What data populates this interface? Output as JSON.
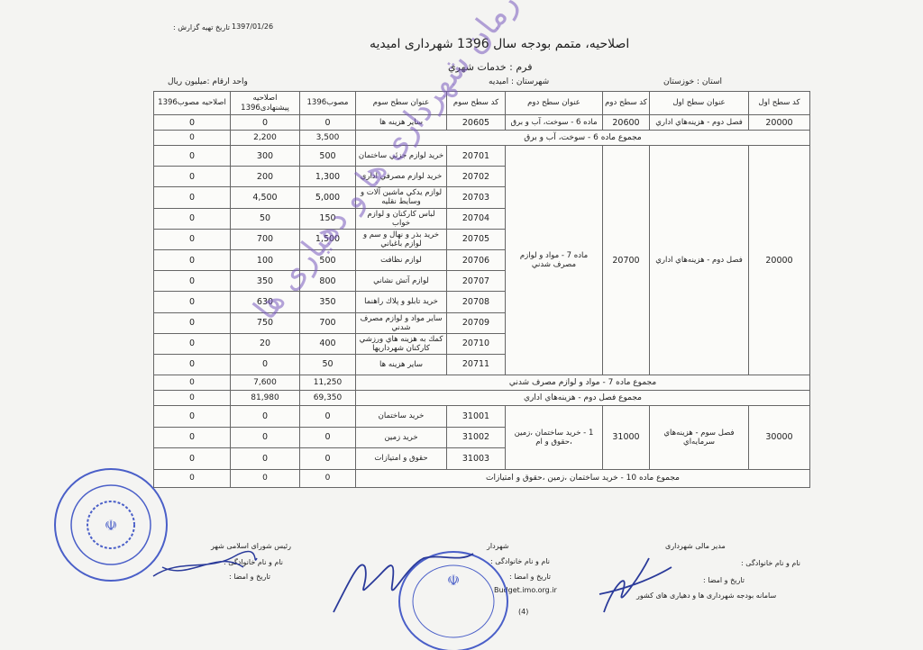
{
  "report_date_label": "تاریخ تهیه گزارش :",
  "report_date": "1397/01/26",
  "title": "اصلاحیه، متمم بودجه سال 1396 شهرداری امیدیه",
  "form": "فرم : خدمات شهري",
  "province": "استان : خوزستان",
  "county": "شهرستان : اميديه",
  "unit": "واحد ارقام :میلیون ریال",
  "table": {
    "headers": [
      "کد سطح اول",
      "عنوان سطح اول",
      "کد سطح دوم",
      "عنوان سطح دوم",
      "کد سطح سوم",
      "عنوان سطح سوم",
      "مصوب1396",
      "اصلاحيه پيشنهادی1396",
      "اصلاحيه مصوب1396"
    ],
    "group1": {
      "code1": "20000",
      "title1": "فصل دوم - هزينه‌هاي اداري",
      "code2": "20600",
      "title2": "ماده 6 - سوخت، آب و برق",
      "rows": [
        {
          "code3": "20605",
          "title3": "ساير هزينه ها",
          "approved": "0",
          "proposed": "0",
          "amend": "0"
        }
      ],
      "subtotal": {
        "label": "مجموع ماده 6 - سوخت، آب و برق",
        "approved": "3,500",
        "proposed": "2,200",
        "amend": "0"
      }
    },
    "group2": {
      "code1": "20000",
      "title1": "فصل دوم - هزينه‌هاي اداري",
      "code2": "20700",
      "title2": "ماده 7 - مواد و لوازم مصرف شدني",
      "rows": [
        {
          "code3": "20701",
          "title3": "خريد لوازم جزئي ساختمان",
          "approved": "500",
          "proposed": "300",
          "amend": "0"
        },
        {
          "code3": "20702",
          "title3": "خريد لوازم مصرفي اداري",
          "approved": "1,300",
          "proposed": "200",
          "amend": "0"
        },
        {
          "code3": "20703",
          "title3": "لوازم يدكي ماشين آلات و وسايط نقليه",
          "approved": "5,000",
          "proposed": "4,500",
          "amend": "0"
        },
        {
          "code3": "20704",
          "title3": "لباس كاركنان و لوازم خواب",
          "approved": "150",
          "proposed": "50",
          "amend": "0"
        },
        {
          "code3": "20705",
          "title3": "خريد بذر و نهال و سم و لوازم باغباني",
          "approved": "1,500",
          "proposed": "700",
          "amend": "0"
        },
        {
          "code3": "20706",
          "title3": "لوازم نظافت",
          "approved": "500",
          "proposed": "100",
          "amend": "0"
        },
        {
          "code3": "20707",
          "title3": "لوازم آتش نشاني",
          "approved": "800",
          "proposed": "350",
          "amend": "0"
        },
        {
          "code3": "20708",
          "title3": "خريد تابلو و پلاك راهنما",
          "approved": "350",
          "proposed": "630",
          "amend": "0"
        },
        {
          "code3": "20709",
          "title3": "ساير مواد و لوازم مصرف شدني",
          "approved": "700",
          "proposed": "750",
          "amend": "0"
        },
        {
          "code3": "20710",
          "title3": "كمك به هزينه هاي ورزشي كاركنان شهرداريها",
          "approved": "400",
          "proposed": "20",
          "amend": "0"
        },
        {
          "code3": "20711",
          "title3": "ساير هزينه ها",
          "approved": "50",
          "proposed": "0",
          "amend": "0"
        }
      ],
      "subtotal": {
        "label": "مجموع ماده 7 - مواد و لوازم مصرف شدني",
        "approved": "11,250",
        "proposed": "7,600",
        "amend": "0"
      }
    },
    "chapter2_total": {
      "label": "مجموع فصل دوم - هزينه‌هاي اداري",
      "approved": "69,350",
      "proposed": "81,980",
      "amend": "0"
    },
    "group3": {
      "code1": "30000",
      "title1": "فصل سوم - هزينه‌هاي سرمايه‌اي",
      "code2": "31000",
      "title2": "1 - خريد ساختمان ،زمين ،حقوق و ام",
      "rows": [
        {
          "code3": "31001",
          "title3": "خريد ساختمان",
          "approved": "0",
          "proposed": "0",
          "amend": "0"
        },
        {
          "code3": "31002",
          "title3": "خريد زمين",
          "approved": "0",
          "proposed": "0",
          "amend": "0"
        },
        {
          "code3": "31003",
          "title3": "حقوق و امتيازات",
          "approved": "0",
          "proposed": "0",
          "amend": "0"
        }
      ],
      "subtotal": {
        "label": "مجموع ماده 10 - خريد ساختمان ،زمين ،حقوق و امتيازات",
        "approved": "0",
        "proposed": "0",
        "amend": "0"
      }
    }
  },
  "footer": {
    "finance": {
      "role": "مدير مالی شهرداری",
      "name": "نام و نام خانوادگی :",
      "date": "تاریخ و امضا :"
    },
    "mayor": {
      "role": "شهردار",
      "name": "نام و نام خانوادگی :",
      "date": "تاریخ و امضا :"
    },
    "council": {
      "role": "رئیس شورای اسلامی شهر",
      "name": "نام و نام خانوادگی :",
      "date": "تاریخ و امضا :"
    },
    "system": "سامانه بودجه شهرداری ها و دهیاری های کشور",
    "website": "Budget.imo.org.ir",
    "page": "(4)"
  },
  "watermark": "سامانه يكپارچه بودجه سازمان شهرداری ها و دهیاری ها",
  "stamps": {
    "council_stamp": "شورای اسلامی شهر امیدیه - دوره پنجم",
    "governorate_stamp": "جمهوری اسلامی ایران وزارت کشور استانداری خوزستان شهرداری امیدیه"
  },
  "colors": {
    "stamp_blue": "#4a5fc8",
    "watermark": "#7a5abe",
    "ink": "#2a3a9a"
  }
}
